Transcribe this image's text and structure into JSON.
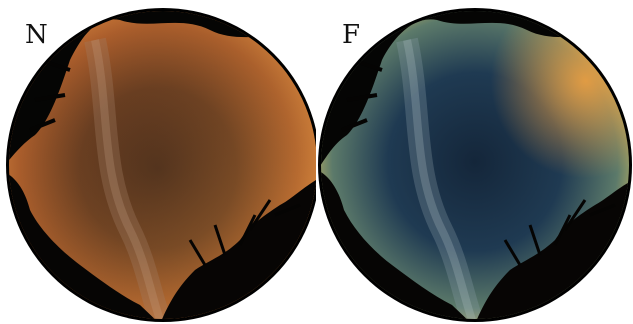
{
  "panels": [
    {
      "label": "N",
      "sky_color": "#7a4a2a",
      "horizon_color": "#d27a3a"
    },
    {
      "label": "F",
      "sky_color": "#1e3044",
      "horizon_color": "#c9b85a"
    }
  ]
}
